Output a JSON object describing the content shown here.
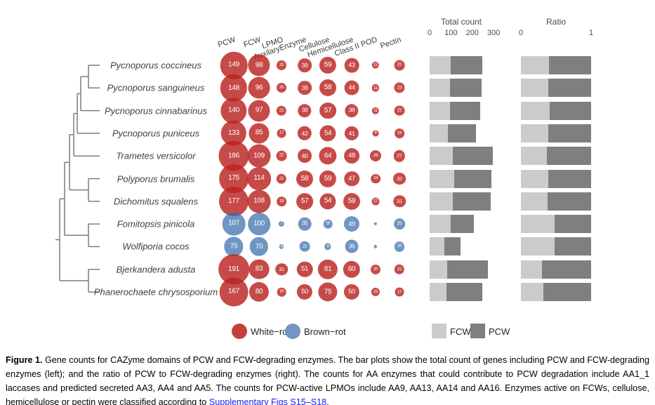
{
  "figure": {
    "column_headers": [
      "PCW",
      "FCW",
      "LPMO",
      "AuxilaryEnzyme",
      "Cellulose",
      "Hemicellulose",
      "Class II POD",
      "Pectin"
    ],
    "species": [
      {
        "name": "Pycnoporus coccineus",
        "rot": "white-rot",
        "counts": [
          149,
          98,
          20,
          39,
          59,
          43,
          11,
          22
        ]
      },
      {
        "name": "Pycnoporus sanguineus",
        "rot": "white-rot",
        "counts": [
          148,
          96,
          20,
          39,
          58,
          44,
          11,
          23
        ]
      },
      {
        "name": "Pycnoporus cinnabarinus",
        "rot": "white-rot",
        "counts": [
          140,
          97,
          21,
          38,
          57,
          38,
          11,
          22
        ]
      },
      {
        "name": "Pycnoporus puniceus",
        "rot": "white-rot",
        "counts": [
          133,
          85,
          17,
          42,
          54,
          41,
          8,
          19
        ]
      },
      {
        "name": "Trametes versicolor",
        "rot": "white-rot",
        "counts": [
          186,
          109,
          22,
          40,
          64,
          48,
          26,
          27
        ]
      },
      {
        "name": "Polyporus brumalis",
        "rot": "white-rot",
        "counts": [
          175,
          114,
          21,
          58,
          59,
          47,
          19,
          32
        ]
      },
      {
        "name": "Dichomitus squalens",
        "rot": "white-rot",
        "counts": [
          177,
          108,
          19,
          57,
          54,
          58,
          12,
          31
        ]
      },
      {
        "name": "Fomitopsis pinicola",
        "rot": "brown-rot",
        "counts": [
          107,
          100,
          7,
          35,
          16,
          49,
          null,
          25
        ]
      },
      {
        "name": "Wolfiporia cocos",
        "rot": "brown-rot",
        "counts": [
          75,
          70,
          4,
          22,
          9,
          36,
          null,
          20
        ]
      },
      {
        "name": "Bjerkandera adusta",
        "rot": "white-rot",
        "counts": [
          191,
          83,
          31,
          51,
          81,
          60,
          20,
          21
        ]
      },
      {
        "name": "Phanerochaete chrysosporium",
        "rot": "white-rot",
        "counts": [
          167,
          80,
          16,
          50,
          75,
          50,
          15,
          17
        ]
      }
    ],
    "total_panel": {
      "title": "Total count",
      "ticks": [
        0,
        100,
        200,
        300
      ],
      "max": 300
    },
    "ratio_panel": {
      "title": "Ratio",
      "ticks": [
        0,
        1
      ],
      "max": 1
    },
    "legend": {
      "white_rot_label": "White−rot",
      "brown_rot_label": "Brown−rot",
      "fcw_label": "FCW",
      "pcw_label": "PCW"
    },
    "colors": {
      "white_rot": "#c5403d",
      "brown_rot": "#7395c4",
      "fcw": "#cbcbcb",
      "pcw": "#7f7f7f"
    }
  },
  "caption": {
    "label": "Figure 1.",
    "body": " Gene counts for CAZyme domains of PCW and FCW-degrading enzymes. The bar plots show the total count of genes including PCW and FCW-degrading enzymes (left); and the ratio of PCW to FCW-degrading enzymes (right). The counts for AA enzymes that could contribute to PCW degradation include AA1_1 laccases and predicted secreted AA3, AA4 and AA5. The counts for PCW-active LPMOs include AA9, AA13, AA14 and AA16. Enzymes active on FCWs, cellulose, hemicellulose or pectin were classified according to ",
    "link": "Supplementary Figs S15–S18",
    "after": "."
  },
  "chart_data": {
    "type": "bubble",
    "title": "Gene counts for CAZyme domains of PCW and FCW-degrading enzymes",
    "columns": [
      "PCW",
      "FCW",
      "LPMO",
      "AuxilaryEnzyme",
      "Cellulose",
      "Hemicellulose",
      "Class II POD",
      "Pectin"
    ],
    "series": [
      {
        "name": "Pycnoporus coccineus",
        "rot": "white-rot",
        "values": [
          149,
          98,
          20,
          39,
          59,
          43,
          11,
          22
        ]
      },
      {
        "name": "Pycnoporus sanguineus",
        "rot": "white-rot",
        "values": [
          148,
          96,
          20,
          39,
          58,
          44,
          11,
          23
        ]
      },
      {
        "name": "Pycnoporus cinnabarinus",
        "rot": "white-rot",
        "values": [
          140,
          97,
          21,
          38,
          57,
          38,
          11,
          22
        ]
      },
      {
        "name": "Pycnoporus puniceus",
        "rot": "white-rot",
        "values": [
          133,
          85,
          17,
          42,
          54,
          41,
          8,
          19
        ]
      },
      {
        "name": "Trametes versicolor",
        "rot": "white-rot",
        "values": [
          186,
          109,
          22,
          40,
          64,
          48,
          26,
          27
        ]
      },
      {
        "name": "Polyporus brumalis",
        "rot": "white-rot",
        "values": [
          175,
          114,
          21,
          58,
          59,
          47,
          19,
          32
        ]
      },
      {
        "name": "Dichomitus squalens",
        "rot": "white-rot",
        "values": [
          177,
          108,
          19,
          57,
          54,
          58,
          12,
          31
        ]
      },
      {
        "name": "Fomitopsis pinicola",
        "rot": "brown-rot",
        "values": [
          107,
          100,
          7,
          35,
          16,
          49,
          null,
          25
        ]
      },
      {
        "name": "Wolfiporia cocos",
        "rot": "brown-rot",
        "values": [
          75,
          70,
          4,
          22,
          9,
          36,
          null,
          20
        ]
      },
      {
        "name": "Bjerkandera adusta",
        "rot": "white-rot",
        "values": [
          191,
          83,
          31,
          51,
          81,
          60,
          20,
          21
        ]
      },
      {
        "name": "Phanerochaete chrysosporium",
        "rot": "white-rot",
        "values": [
          167,
          80,
          16,
          50,
          75,
          50,
          15,
          17
        ]
      }
    ],
    "bar_panels": [
      {
        "type": "bar",
        "title": "Total count",
        "stacked": true,
        "orientation": "horizontal",
        "xlim": [
          0,
          300
        ],
        "ticks": [
          0,
          100,
          200,
          300
        ],
        "series": [
          {
            "name": "FCW",
            "values": [
              98,
              96,
              97,
              85,
              109,
              114,
              108,
              100,
              70,
              83,
              80
            ]
          },
          {
            "name": "PCW",
            "values": [
              149,
              148,
              140,
              133,
              186,
              175,
              177,
              107,
              75,
              191,
              167
            ]
          }
        ]
      },
      {
        "type": "bar",
        "title": "Ratio",
        "stacked": true,
        "orientation": "horizontal",
        "xlim": [
          0,
          1
        ],
        "ticks": [
          0,
          1
        ],
        "note": "FCW and PCW fractions of the total gene count per species"
      }
    ],
    "legend": [
      "White−rot",
      "Brown−rot",
      "FCW",
      "PCW"
    ],
    "legend_position": "bottom"
  }
}
